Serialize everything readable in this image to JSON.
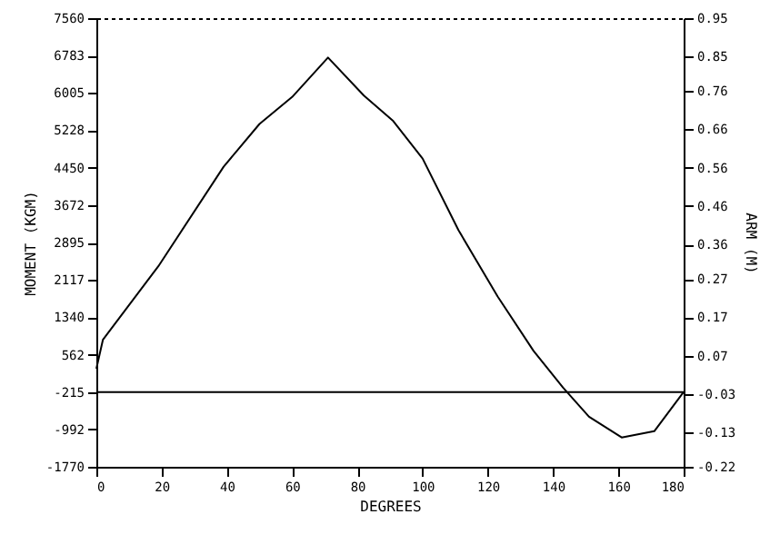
{
  "chart_data": {
    "type": "line",
    "xlabel": "DEGREES",
    "ylabel": "MOMENT (KGM)",
    "y2label": "ARM (M)",
    "x": [
      0,
      2,
      19,
      39,
      50,
      60,
      71,
      82,
      91,
      100,
      111,
      123,
      134,
      143,
      151,
      161,
      171,
      180
    ],
    "series": [
      {
        "color": "#000000",
        "values": [
          270,
          870,
          2400,
          4470,
          5360,
          5920,
          6740,
          5950,
          5420,
          4640,
          3150,
          1770,
          640,
          -120,
          -730,
          -1160,
          -1030,
          -215
        ]
      }
    ],
    "xlim": [
      0,
      180
    ],
    "xticks": [
      0,
      20,
      40,
      60,
      80,
      100,
      120,
      140,
      160,
      180
    ],
    "ylim": [
      -1770,
      7560
    ],
    "yticks": [
      -1770,
      -992,
      -215,
      562,
      1340,
      2117,
      2895,
      3672,
      4450,
      5228,
      6005,
      6783,
      7560
    ],
    "y2lim": [
      -0.22,
      0.95
    ],
    "y2ticks": [
      -0.22,
      -0.13,
      -0.03,
      0.07,
      0.17,
      0.27,
      0.36,
      0.46,
      0.56,
      0.66,
      0.76,
      0.85,
      0.95
    ],
    "ref_lines": [
      {
        "axis": "y",
        "value": -215,
        "color": "#000000"
      }
    ],
    "grid": false,
    "marker": "none",
    "line_style": "solid"
  }
}
